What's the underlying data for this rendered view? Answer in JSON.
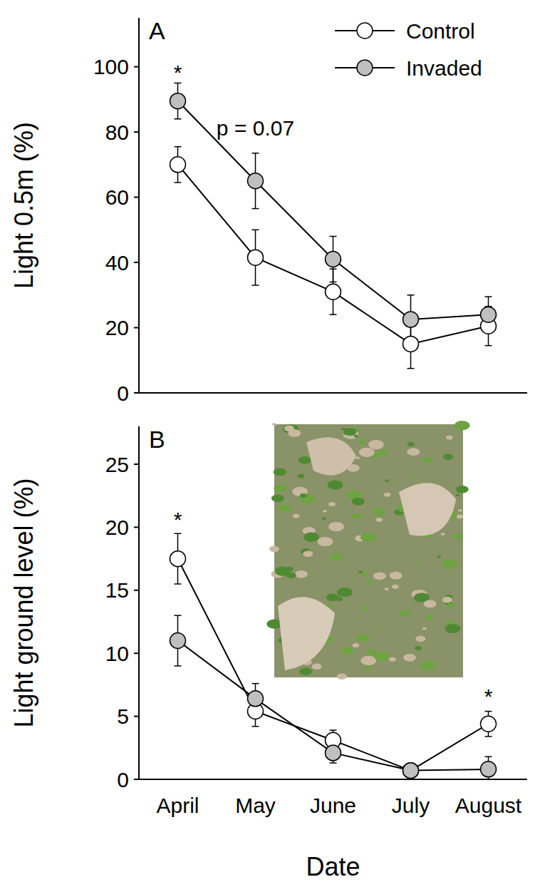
{
  "chart_data": [
    {
      "type": "line",
      "panel": "A",
      "y_label": "Light 0.5m (%)",
      "categories": [
        "April",
        "May",
        "June",
        "July",
        "August"
      ],
      "series": [
        {
          "name": "Control",
          "color": "#ffffff",
          "marker": "circle",
          "line_style": "solid",
          "values": [
            70,
            41.5,
            31,
            15,
            20.5
          ],
          "errors": [
            5.5,
            8.5,
            7,
            7.5,
            6
          ]
        },
        {
          "name": "Invaded",
          "color": "#bfbfbf",
          "marker": "circle",
          "line_style": "solid",
          "values": [
            89.5,
            65,
            41,
            22.5,
            24
          ],
          "errors": [
            5.5,
            8.5,
            7,
            7.5,
            5.5
          ]
        }
      ],
      "ylim": [
        0,
        115
      ],
      "yticks": [
        0,
        20,
        40,
        60,
        80,
        100
      ],
      "legend": "upper right",
      "tick_labels": "y",
      "annotations": [
        {
          "text": "*",
          "x": "April",
          "y": 96
        },
        {
          "text": "p = 0.07",
          "x": "May",
          "y": 79
        }
      ]
    },
    {
      "type": "line",
      "panel": "B",
      "y_label": "Light ground level (%)",
      "x_label": "Date",
      "categories": [
        "April",
        "May",
        "June",
        "July",
        "August"
      ],
      "series": [
        {
          "name": "Control",
          "color": "#ffffff",
          "marker": "circle",
          "line_style": "solid",
          "values": [
            17.5,
            5.4,
            3.1,
            0.7,
            4.4
          ],
          "errors": [
            2,
            1.2,
            0.8,
            0.3,
            1
          ]
        },
        {
          "name": "Invaded",
          "color": "#bfbfbf",
          "marker": "circle",
          "line_style": "solid",
          "values": [
            11,
            6.4,
            2.1,
            0.7,
            0.8
          ],
          "errors": [
            2,
            1.2,
            0.8,
            0.3,
            1
          ]
        }
      ],
      "ylim": [
        0,
        28
      ],
      "yticks": [
        0,
        5,
        10,
        15,
        20,
        25
      ],
      "annotations": [
        {
          "text": "*",
          "x": "April",
          "y": 20
        },
        {
          "text": "*",
          "x": "August",
          "y": 6
        }
      ]
    }
  ]
}
